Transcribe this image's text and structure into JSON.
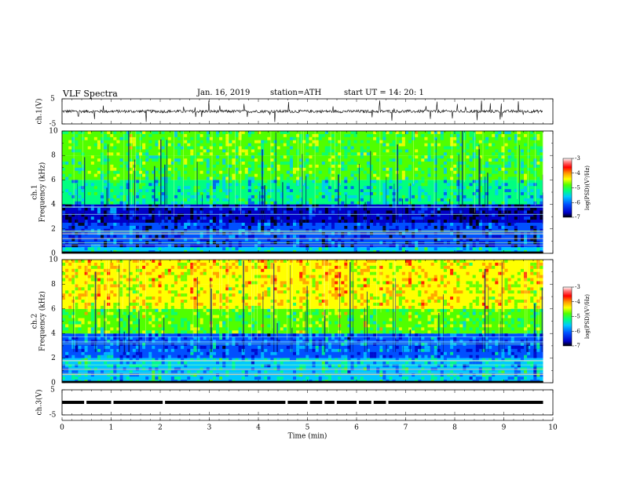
{
  "header": {
    "title": "VLF  Spectra",
    "date": "Jan.  16,  2019",
    "station": "station=ATH",
    "start": "start  UT  =    14: 20: 1"
  },
  "chart_data": [
    {
      "type": "line",
      "panel": "ch1-waveform",
      "ylabel": "ch.1(V)",
      "ylim": [
        -5,
        5
      ],
      "yticks": [
        -5,
        5
      ],
      "xlim": [
        0,
        10
      ],
      "x_extent": [
        0,
        9.8
      ],
      "baseline": 0,
      "amplitude_typical": 1.2,
      "color": "#000000"
    },
    {
      "type": "heatmap",
      "panel": "ch1-spectrogram",
      "ylabel": "ch.1 Frequency (kHz)",
      "ylim": [
        0,
        10
      ],
      "yticks": [
        0,
        2,
        4,
        6,
        8,
        10
      ],
      "xlim": [
        0,
        10
      ],
      "x_extent": [
        0,
        9.8
      ],
      "colorbar_label": "log(PSD)(V²/Hz)",
      "colorbar_ticks": [
        -3,
        -4,
        -5,
        -6,
        -7
      ],
      "bands_logpsd": [
        {
          "f_range": [
            0,
            0.5
          ],
          "level": -5.5
        },
        {
          "f_range": [
            0.5,
            2.5
          ],
          "level": -6.3
        },
        {
          "f_range": [
            2.5,
            4.0
          ],
          "level": -6.6
        },
        {
          "f_range": [
            4.0,
            6.0
          ],
          "level": -5.4
        },
        {
          "f_range": [
            6.0,
            8.0
          ],
          "level": -5.0
        },
        {
          "f_range": [
            8.0,
            10.0
          ],
          "level": -4.9
        }
      ]
    },
    {
      "type": "heatmap",
      "panel": "ch2-spectrogram",
      "ylabel": "ch.2 Frequency (kHz)",
      "ylim": [
        0,
        10
      ],
      "yticks": [
        0,
        2,
        4,
        6,
        8,
        10
      ],
      "xlim": [
        0,
        10
      ],
      "x_extent": [
        0,
        9.8
      ],
      "colorbar_label": "log(PSD)(V²/Hz)",
      "colorbar_ticks": [
        -3,
        -4,
        -5,
        -6,
        -7
      ],
      "bands_logpsd": [
        {
          "f_range": [
            0,
            2.0
          ],
          "level": -5.6
        },
        {
          "f_range": [
            2.0,
            4.0
          ],
          "level": -6.0
        },
        {
          "f_range": [
            4.0,
            6.0
          ],
          "level": -4.8
        },
        {
          "f_range": [
            6.0,
            8.0
          ],
          "level": -4.3
        },
        {
          "f_range": [
            8.0,
            10.0
          ],
          "level": -4.2
        }
      ]
    },
    {
      "type": "line",
      "panel": "ch3-waveform",
      "ylabel": "ch.3(V)",
      "ylim": [
        -5,
        5
      ],
      "yticks": [
        -5,
        5
      ],
      "xlim": [
        0,
        10
      ],
      "x_extent": [
        0,
        9.8
      ],
      "baseline": 0,
      "color": "#000000"
    }
  ],
  "xaxis": {
    "label": "Time  (min)",
    "ticks": [
      "0",
      "1",
      "2",
      "3",
      "4",
      "5",
      "6",
      "7",
      "8",
      "9",
      "10"
    ]
  },
  "colors": {
    "colormap": [
      "#000000",
      "#0000c8",
      "#0050ff",
      "#00c8ff",
      "#00ff80",
      "#50ff00",
      "#ffff00",
      "#ff9600",
      "#ff0000",
      "#ff8080",
      "#ffffff"
    ]
  }
}
